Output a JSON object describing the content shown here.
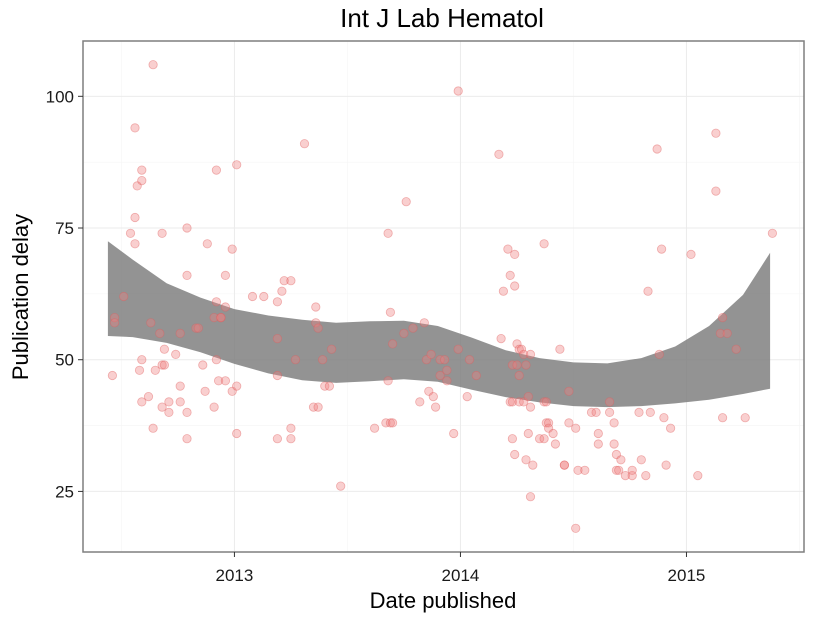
{
  "chart_data": {
    "type": "scatter",
    "title": "Int J Lab Hematol",
    "xlabel": "Date published",
    "ylabel": "Publication delay",
    "x_ticks": [
      "2013",
      "2014",
      "2015"
    ],
    "x_tick_values": [
      2013.0,
      2014.0,
      2015.0
    ],
    "y_ticks": [
      25,
      50,
      75,
      100
    ],
    "xlim": [
      2012.33,
      2015.52
    ],
    "ylim": [
      13.5,
      110.5
    ],
    "grid": true,
    "point_color": "#f08080",
    "band_color": "#808080",
    "points": [
      [
        2012.46,
        47
      ],
      [
        2012.47,
        58
      ],
      [
        2012.47,
        57
      ],
      [
        2012.51,
        62
      ],
      [
        2012.54,
        74
      ],
      [
        2012.56,
        77
      ],
      [
        2012.56,
        94
      ],
      [
        2012.56,
        72
      ],
      [
        2012.57,
        83
      ],
      [
        2012.58,
        48
      ],
      [
        2012.59,
        86
      ],
      [
        2012.59,
        84
      ],
      [
        2012.59,
        50
      ],
      [
        2012.59,
        42
      ],
      [
        2012.62,
        43
      ],
      [
        2012.63,
        57
      ],
      [
        2012.64,
        37
      ],
      [
        2012.64,
        106
      ],
      [
        2012.65,
        48
      ],
      [
        2012.67,
        55
      ],
      [
        2012.68,
        49
      ],
      [
        2012.68,
        74
      ],
      [
        2012.68,
        41
      ],
      [
        2012.69,
        49
      ],
      [
        2012.69,
        52
      ],
      [
        2012.71,
        42
      ],
      [
        2012.71,
        40
      ],
      [
        2012.74,
        51
      ],
      [
        2012.76,
        45
      ],
      [
        2012.76,
        42
      ],
      [
        2012.76,
        55
      ],
      [
        2012.79,
        75
      ],
      [
        2012.79,
        66
      ],
      [
        2012.79,
        40
      ],
      [
        2012.79,
        35
      ],
      [
        2012.83,
        56
      ],
      [
        2012.84,
        56
      ],
      [
        2012.86,
        49
      ],
      [
        2012.87,
        44
      ],
      [
        2012.88,
        72
      ],
      [
        2012.91,
        58
      ],
      [
        2012.91,
        41
      ],
      [
        2012.92,
        61
      ],
      [
        2012.92,
        86
      ],
      [
        2012.92,
        50
      ],
      [
        2012.93,
        46
      ],
      [
        2012.94,
        58
      ],
      [
        2012.94,
        58
      ],
      [
        2012.96,
        66
      ],
      [
        2012.96,
        46
      ],
      [
        2012.96,
        60
      ],
      [
        2012.99,
        44
      ],
      [
        2012.99,
        71
      ],
      [
        2013.01,
        45
      ],
      [
        2013.01,
        36
      ],
      [
        2013.01,
        87
      ],
      [
        2013.08,
        62
      ],
      [
        2013.13,
        62
      ],
      [
        2013.19,
        47
      ],
      [
        2013.19,
        35
      ],
      [
        2013.19,
        54
      ],
      [
        2013.19,
        61
      ],
      [
        2013.21,
        63
      ],
      [
        2013.22,
        65
      ],
      [
        2013.25,
        65
      ],
      [
        2013.25,
        37
      ],
      [
        2013.25,
        35
      ],
      [
        2013.27,
        50
      ],
      [
        2013.31,
        91
      ],
      [
        2013.35,
        41
      ],
      [
        2013.36,
        57
      ],
      [
        2013.36,
        60
      ],
      [
        2013.37,
        41
      ],
      [
        2013.37,
        56
      ],
      [
        2013.39,
        50
      ],
      [
        2013.4,
        45
      ],
      [
        2013.42,
        45
      ],
      [
        2013.43,
        52
      ],
      [
        2013.47,
        26
      ],
      [
        2013.62,
        37
      ],
      [
        2013.67,
        38
      ],
      [
        2013.68,
        46
      ],
      [
        2013.68,
        74
      ],
      [
        2013.69,
        38
      ],
      [
        2013.69,
        59
      ],
      [
        2013.7,
        38
      ],
      [
        2013.7,
        53
      ],
      [
        2013.75,
        55
      ],
      [
        2013.76,
        80
      ],
      [
        2013.79,
        56
      ],
      [
        2013.82,
        42
      ],
      [
        2013.84,
        57
      ],
      [
        2013.85,
        50
      ],
      [
        2013.86,
        44
      ],
      [
        2013.87,
        51
      ],
      [
        2013.88,
        43
      ],
      [
        2013.89,
        41
      ],
      [
        2013.91,
        47
      ],
      [
        2013.91,
        50
      ],
      [
        2013.93,
        50
      ],
      [
        2013.94,
        48
      ],
      [
        2013.94,
        46
      ],
      [
        2013.97,
        36
      ],
      [
        2013.99,
        101
      ],
      [
        2013.99,
        52
      ],
      [
        2014.03,
        43
      ],
      [
        2014.04,
        50
      ],
      [
        2014.07,
        47
      ],
      [
        2014.17,
        89
      ],
      [
        2014.18,
        54
      ],
      [
        2014.19,
        63
      ],
      [
        2014.21,
        71
      ],
      [
        2014.22,
        66
      ],
      [
        2014.22,
        42
      ],
      [
        2014.23,
        35
      ],
      [
        2014.23,
        49
      ],
      [
        2014.23,
        42
      ],
      [
        2014.24,
        32
      ],
      [
        2014.24,
        70
      ],
      [
        2014.24,
        64
      ],
      [
        2014.25,
        53
      ],
      [
        2014.25,
        49
      ],
      [
        2014.26,
        47
      ],
      [
        2014.26,
        42
      ],
      [
        2014.26,
        52
      ],
      [
        2014.27,
        52
      ],
      [
        2014.28,
        51
      ],
      [
        2014.28,
        42
      ],
      [
        2014.29,
        49
      ],
      [
        2014.29,
        31
      ],
      [
        2014.3,
        43
      ],
      [
        2014.3,
        36
      ],
      [
        2014.31,
        24
      ],
      [
        2014.31,
        51
      ],
      [
        2014.31,
        41
      ],
      [
        2014.32,
        30
      ],
      [
        2014.35,
        35
      ],
      [
        2014.37,
        72
      ],
      [
        2014.37,
        42
      ],
      [
        2014.37,
        35
      ],
      [
        2014.38,
        42
      ],
      [
        2014.38,
        38
      ],
      [
        2014.39,
        38
      ],
      [
        2014.39,
        37
      ],
      [
        2014.41,
        36
      ],
      [
        2014.42,
        34
      ],
      [
        2014.44,
        52
      ],
      [
        2014.46,
        30
      ],
      [
        2014.46,
        30
      ],
      [
        2014.48,
        44
      ],
      [
        2014.48,
        38
      ],
      [
        2014.51,
        37
      ],
      [
        2014.51,
        18
      ],
      [
        2014.52,
        29
      ],
      [
        2014.55,
        29
      ],
      [
        2014.58,
        40
      ],
      [
        2014.6,
        40
      ],
      [
        2014.61,
        36
      ],
      [
        2014.61,
        34
      ],
      [
        2014.66,
        42
      ],
      [
        2014.66,
        40
      ],
      [
        2014.68,
        38
      ],
      [
        2014.68,
        34
      ],
      [
        2014.69,
        32
      ],
      [
        2014.69,
        29
      ],
      [
        2014.7,
        29
      ],
      [
        2014.71,
        31
      ],
      [
        2014.73,
        28
      ],
      [
        2014.76,
        28
      ],
      [
        2014.76,
        29
      ],
      [
        2014.79,
        40
      ],
      [
        2014.8,
        31
      ],
      [
        2014.82,
        28
      ],
      [
        2014.83,
        63
      ],
      [
        2014.84,
        40
      ],
      [
        2014.87,
        90
      ],
      [
        2014.88,
        51
      ],
      [
        2014.89,
        71
      ],
      [
        2014.9,
        39
      ],
      [
        2014.91,
        30
      ],
      [
        2014.93,
        37
      ],
      [
        2015.02,
        70
      ],
      [
        2015.05,
        28
      ],
      [
        2015.13,
        93
      ],
      [
        2015.13,
        82
      ],
      [
        2015.15,
        55
      ],
      [
        2015.16,
        58
      ],
      [
        2015.16,
        39
      ],
      [
        2015.18,
        55
      ],
      [
        2015.22,
        52
      ],
      [
        2015.26,
        39
      ],
      [
        2015.38,
        74
      ]
    ],
    "band": {
      "x": [
        2012.44,
        2012.55,
        2012.7,
        2012.85,
        2013.0,
        2013.15,
        2013.3,
        2013.45,
        2013.6,
        2013.75,
        2013.9,
        2014.05,
        2014.2,
        2014.35,
        2014.5,
        2014.65,
        2014.8,
        2014.95,
        2015.1,
        2015.25,
        2015.37
      ],
      "upper": [
        72.5,
        69.0,
        64.5,
        61.8,
        59.6,
        58.4,
        57.6,
        57.0,
        57.3,
        57.4,
        56.4,
        54.2,
        51.8,
        50.3,
        49.5,
        49.3,
        50.3,
        52.5,
        56.4,
        62.3,
        70.3
      ],
      "lower": [
        54.5,
        54.3,
        53.2,
        51.4,
        49.2,
        47.4,
        46.1,
        45.6,
        45.9,
        46.3,
        45.8,
        44.3,
        42.9,
        41.9,
        41.2,
        41.0,
        41.2,
        41.7,
        42.4,
        43.5,
        44.5
      ]
    }
  }
}
